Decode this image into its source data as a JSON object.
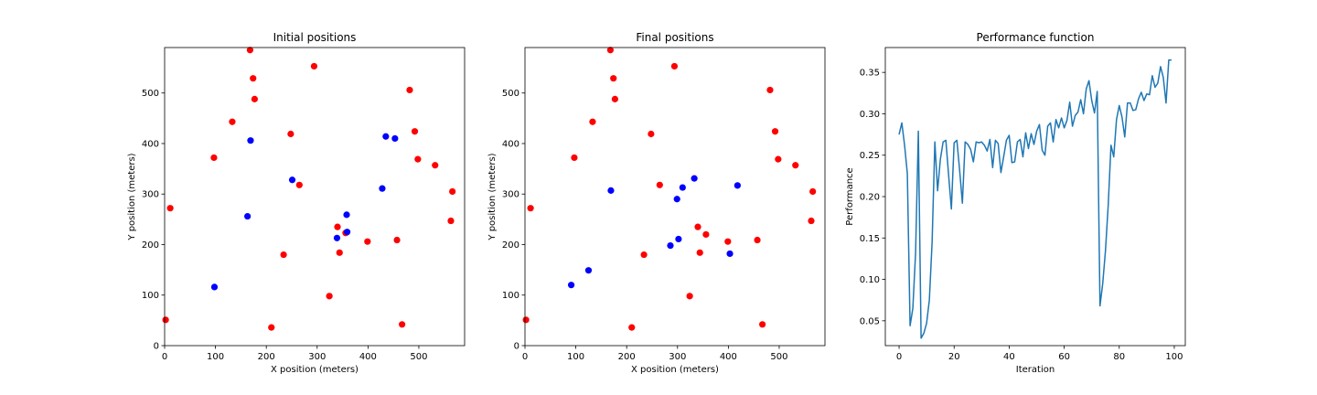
{
  "chart_data": [
    {
      "type": "scatter",
      "title": "Initial positions",
      "xlabel": "X position (meters)",
      "ylabel": "Y position (meters)",
      "xlim": [
        0,
        590
      ],
      "ylim": [
        0,
        590
      ],
      "xticks": [
        0,
        100,
        200,
        300,
        400,
        500
      ],
      "yticks": [
        0,
        100,
        200,
        300,
        400,
        500
      ],
      "grid": false,
      "series": [
        {
          "color": "#ff0000",
          "points": [
            [
              168,
              585
            ],
            [
              174,
              529
            ],
            [
              177,
              488
            ],
            [
              294,
              553
            ],
            [
              133,
              443
            ],
            [
              248,
              419
            ],
            [
              97,
              372
            ],
            [
              482,
              506
            ],
            [
              492,
              424
            ],
            [
              498,
              369
            ],
            [
              532,
              357
            ],
            [
              566,
              305
            ],
            [
              563,
              247
            ],
            [
              11,
              272
            ],
            [
              265,
              318
            ],
            [
              340,
              235
            ],
            [
              356,
              223
            ],
            [
              344,
              184
            ],
            [
              234,
              180
            ],
            [
              399,
              206
            ],
            [
              457,
              209
            ],
            [
              324,
              98
            ],
            [
              2,
              51
            ],
            [
              210,
              36
            ],
            [
              467,
              42
            ]
          ]
        },
        {
          "color": "#0000ff",
          "points": [
            [
              169,
              406
            ],
            [
              435,
              414
            ],
            [
              453,
              410
            ],
            [
              251,
              328
            ],
            [
              428,
              311
            ],
            [
              163,
              256
            ],
            [
              358,
              259
            ],
            [
              359,
              225
            ],
            [
              339,
              213
            ],
            [
              98,
              116
            ]
          ]
        }
      ]
    },
    {
      "type": "scatter",
      "title": "Final positions",
      "xlabel": "X position (meters)",
      "ylabel": "Y position (meters)",
      "xlim": [
        0,
        590
      ],
      "ylim": [
        0,
        590
      ],
      "xticks": [
        0,
        100,
        200,
        300,
        400,
        500
      ],
      "yticks": [
        0,
        100,
        200,
        300,
        400,
        500
      ],
      "grid": false,
      "series": [
        {
          "color": "#ff0000",
          "points": [
            [
              168,
              585
            ],
            [
              174,
              529
            ],
            [
              177,
              488
            ],
            [
              294,
              553
            ],
            [
              133,
              443
            ],
            [
              248,
              419
            ],
            [
              97,
              372
            ],
            [
              482,
              506
            ],
            [
              492,
              424
            ],
            [
              498,
              369
            ],
            [
              532,
              357
            ],
            [
              566,
              305
            ],
            [
              563,
              247
            ],
            [
              11,
              272
            ],
            [
              265,
              318
            ],
            [
              340,
              235
            ],
            [
              356,
              220
            ],
            [
              344,
              184
            ],
            [
              234,
              180
            ],
            [
              399,
              206
            ],
            [
              457,
              209
            ],
            [
              324,
              98
            ],
            [
              2,
              51
            ],
            [
              210,
              36
            ],
            [
              467,
              42
            ]
          ]
        },
        {
          "color": "#0000ff",
          "points": [
            [
              169,
              307
            ],
            [
              333,
              331
            ],
            [
              418,
              317
            ],
            [
              310,
              313
            ],
            [
              299,
              290
            ],
            [
              302,
              211
            ],
            [
              286,
              198
            ],
            [
              403,
              182
            ],
            [
              125,
              149
            ],
            [
              91,
              120
            ]
          ]
        }
      ]
    },
    {
      "type": "line",
      "title": "Performance function",
      "xlabel": "Iteration",
      "ylabel": "Performance",
      "xlim": [
        -5,
        104
      ],
      "ylim": [
        0.02,
        0.38
      ],
      "xticks": [
        0,
        20,
        40,
        60,
        80,
        100
      ],
      "yticks": [
        0.05,
        0.1,
        0.15,
        0.2,
        0.25,
        0.3,
        0.35
      ],
      "ytick_labels": [
        "0.05",
        "0.10",
        "0.15",
        "0.20",
        "0.25",
        "0.30",
        "0.35"
      ],
      "grid": false,
      "series": [
        {
          "color": "#1f77b4",
          "x": [
            0,
            1,
            2,
            3,
            4,
            5,
            6,
            7,
            8,
            9,
            10,
            11,
            12,
            13,
            14,
            15,
            16,
            17,
            18,
            19,
            20,
            21,
            22,
            23,
            24,
            25,
            26,
            27,
            28,
            29,
            30,
            31,
            32,
            33,
            34,
            35,
            36,
            37,
            38,
            39,
            40,
            41,
            42,
            43,
            44,
            45,
            46,
            47,
            48,
            49,
            50,
            51,
            52,
            53,
            54,
            55,
            56,
            57,
            58,
            59,
            60,
            61,
            62,
            63,
            64,
            65,
            66,
            67,
            68,
            69,
            70,
            71,
            72,
            73,
            74,
            75,
            76,
            77,
            78,
            79,
            80,
            81,
            82,
            83,
            84,
            85,
            86,
            87,
            88,
            89,
            90,
            91,
            92,
            93,
            94,
            95,
            96,
            97,
            98,
            99
          ],
          "y": [
            0.275,
            0.289,
            0.262,
            0.228,
            0.044,
            0.065,
            0.132,
            0.279,
            0.029,
            0.035,
            0.047,
            0.075,
            0.145,
            0.266,
            0.207,
            0.245,
            0.266,
            0.268,
            0.226,
            0.185,
            0.265,
            0.268,
            0.232,
            0.192,
            0.266,
            0.263,
            0.257,
            0.242,
            0.266,
            0.265,
            0.266,
            0.262,
            0.255,
            0.269,
            0.235,
            0.268,
            0.264,
            0.229,
            0.248,
            0.268,
            0.274,
            0.241,
            0.242,
            0.266,
            0.269,
            0.248,
            0.277,
            0.258,
            0.276,
            0.263,
            0.279,
            0.287,
            0.256,
            0.25,
            0.285,
            0.289,
            0.266,
            0.293,
            0.283,
            0.295,
            0.283,
            0.292,
            0.314,
            0.285,
            0.298,
            0.302,
            0.317,
            0.3,
            0.33,
            0.34,
            0.316,
            0.301,
            0.327,
            0.068,
            0.095,
            0.135,
            0.19,
            0.262,
            0.248,
            0.293,
            0.31,
            0.296,
            0.272,
            0.313,
            0.313,
            0.304,
            0.305,
            0.318,
            0.326,
            0.316,
            0.324,
            0.323,
            0.346,
            0.332,
            0.337,
            0.357,
            0.344,
            0.313,
            0.365,
            0.365
          ]
        }
      ]
    }
  ]
}
